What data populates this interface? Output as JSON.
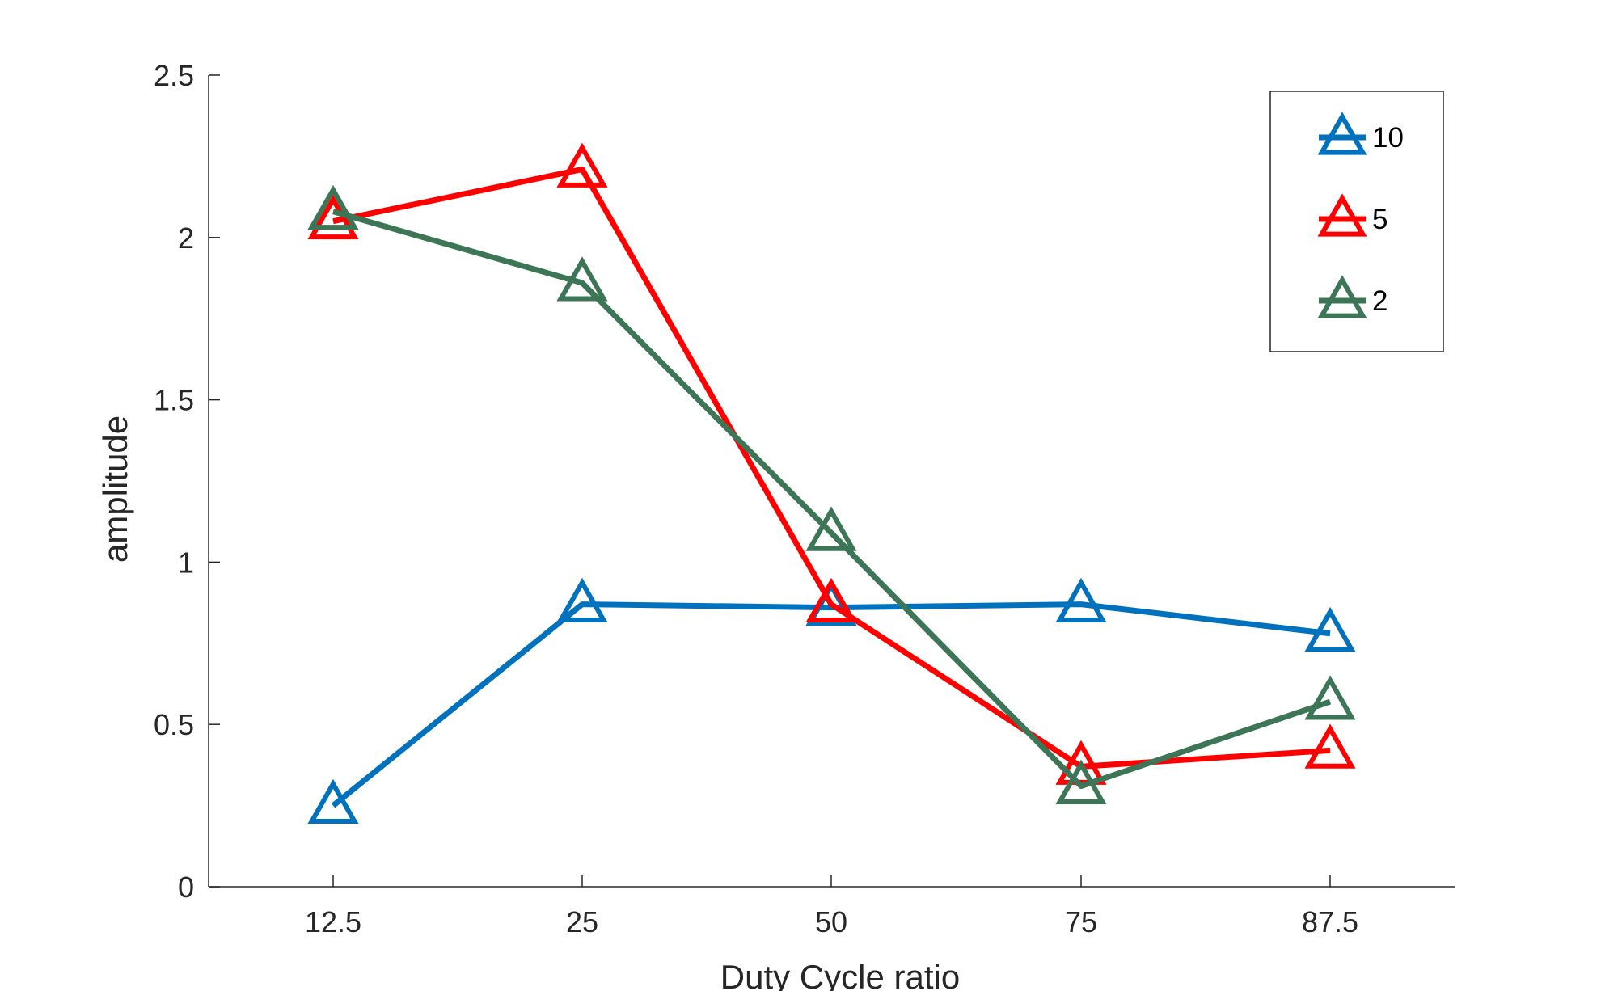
{
  "chart_data": {
    "type": "line",
    "title": "",
    "xlabel": "Duty Cycle ratio",
    "ylabel": "amplitude",
    "categories": [
      "12.5",
      "25",
      "50",
      "75",
      "87.5"
    ],
    "ylim": [
      0,
      2.5
    ],
    "yticks": [
      "0",
      "0.5",
      "1",
      "1.5",
      "2",
      "2.5"
    ],
    "grid": false,
    "legend_position": "top-right",
    "marker": "triangle",
    "series": [
      {
        "name": "10",
        "color": "#0072BD",
        "values": [
          0.25,
          0.87,
          0.86,
          0.87,
          0.78
        ]
      },
      {
        "name": "5",
        "color": "#FF0000",
        "values": [
          2.05,
          2.21,
          0.87,
          0.37,
          0.42
        ]
      },
      {
        "name": "2",
        "color": "#3C7656",
        "values": [
          2.08,
          1.86,
          1.09,
          0.31,
          0.57
        ]
      }
    ]
  }
}
